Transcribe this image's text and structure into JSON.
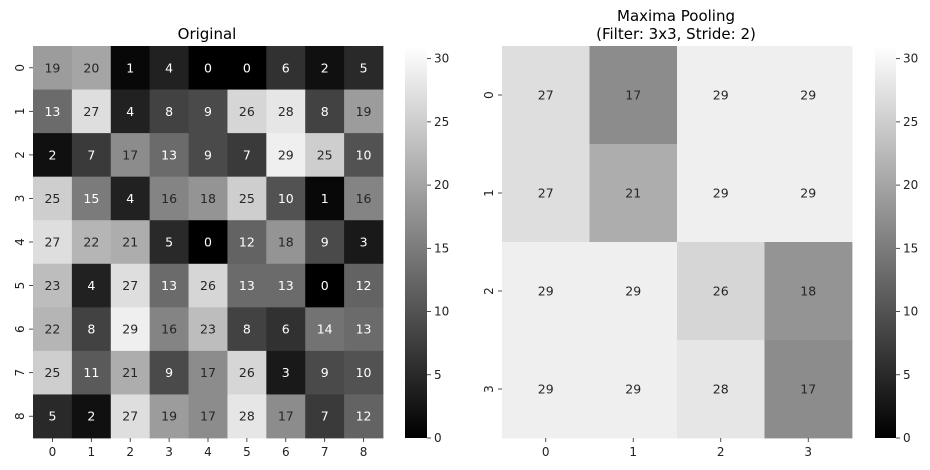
{
  "chart_data": [
    {
      "type": "heatmap",
      "title": "Original",
      "subtitle": "",
      "xlabel": "",
      "ylabel": "",
      "x_ticks": [
        "0",
        "1",
        "2",
        "3",
        "4",
        "5",
        "6",
        "7",
        "8"
      ],
      "y_ticks": [
        "0",
        "1",
        "2",
        "3",
        "4",
        "5",
        "6",
        "7",
        "8"
      ],
      "values": [
        [
          19,
          20,
          1,
          4,
          0,
          0,
          6,
          2,
          5
        ],
        [
          13,
          27,
          4,
          8,
          9,
          26,
          28,
          8,
          19
        ],
        [
          2,
          7,
          17,
          13,
          9,
          7,
          29,
          25,
          10
        ],
        [
          25,
          15,
          4,
          16,
          18,
          25,
          10,
          1,
          16
        ],
        [
          27,
          22,
          21,
          5,
          0,
          12,
          18,
          9,
          3
        ],
        [
          23,
          4,
          27,
          13,
          26,
          13,
          13,
          0,
          12
        ],
        [
          22,
          8,
          29,
          16,
          23,
          8,
          6,
          14,
          13
        ],
        [
          25,
          11,
          21,
          9,
          17,
          26,
          3,
          9,
          10
        ],
        [
          5,
          2,
          27,
          19,
          17,
          28,
          17,
          7,
          12
        ]
      ],
      "colormap": "gray",
      "vmin": 0,
      "vmax": 31,
      "colorbar_ticks": [
        "0",
        "5",
        "10",
        "15",
        "20",
        "25",
        "30"
      ],
      "annotated": true
    },
    {
      "type": "heatmap",
      "title": "Maxima Pooling",
      "subtitle": "(Filter: 3x3, Stride: 2)",
      "xlabel": "",
      "ylabel": "",
      "x_ticks": [
        "0",
        "1",
        "2",
        "3"
      ],
      "y_ticks": [
        "0",
        "1",
        "2",
        "3"
      ],
      "values": [
        [
          27,
          17,
          29,
          29
        ],
        [
          27,
          21,
          29,
          29
        ],
        [
          29,
          29,
          26,
          18
        ],
        [
          29,
          29,
          28,
          17
        ]
      ],
      "colormap": "gray",
      "vmin": 0,
      "vmax": 31,
      "colorbar_ticks": [
        "0",
        "5",
        "10",
        "15",
        "20",
        "25",
        "30"
      ],
      "annotated": true
    }
  ]
}
